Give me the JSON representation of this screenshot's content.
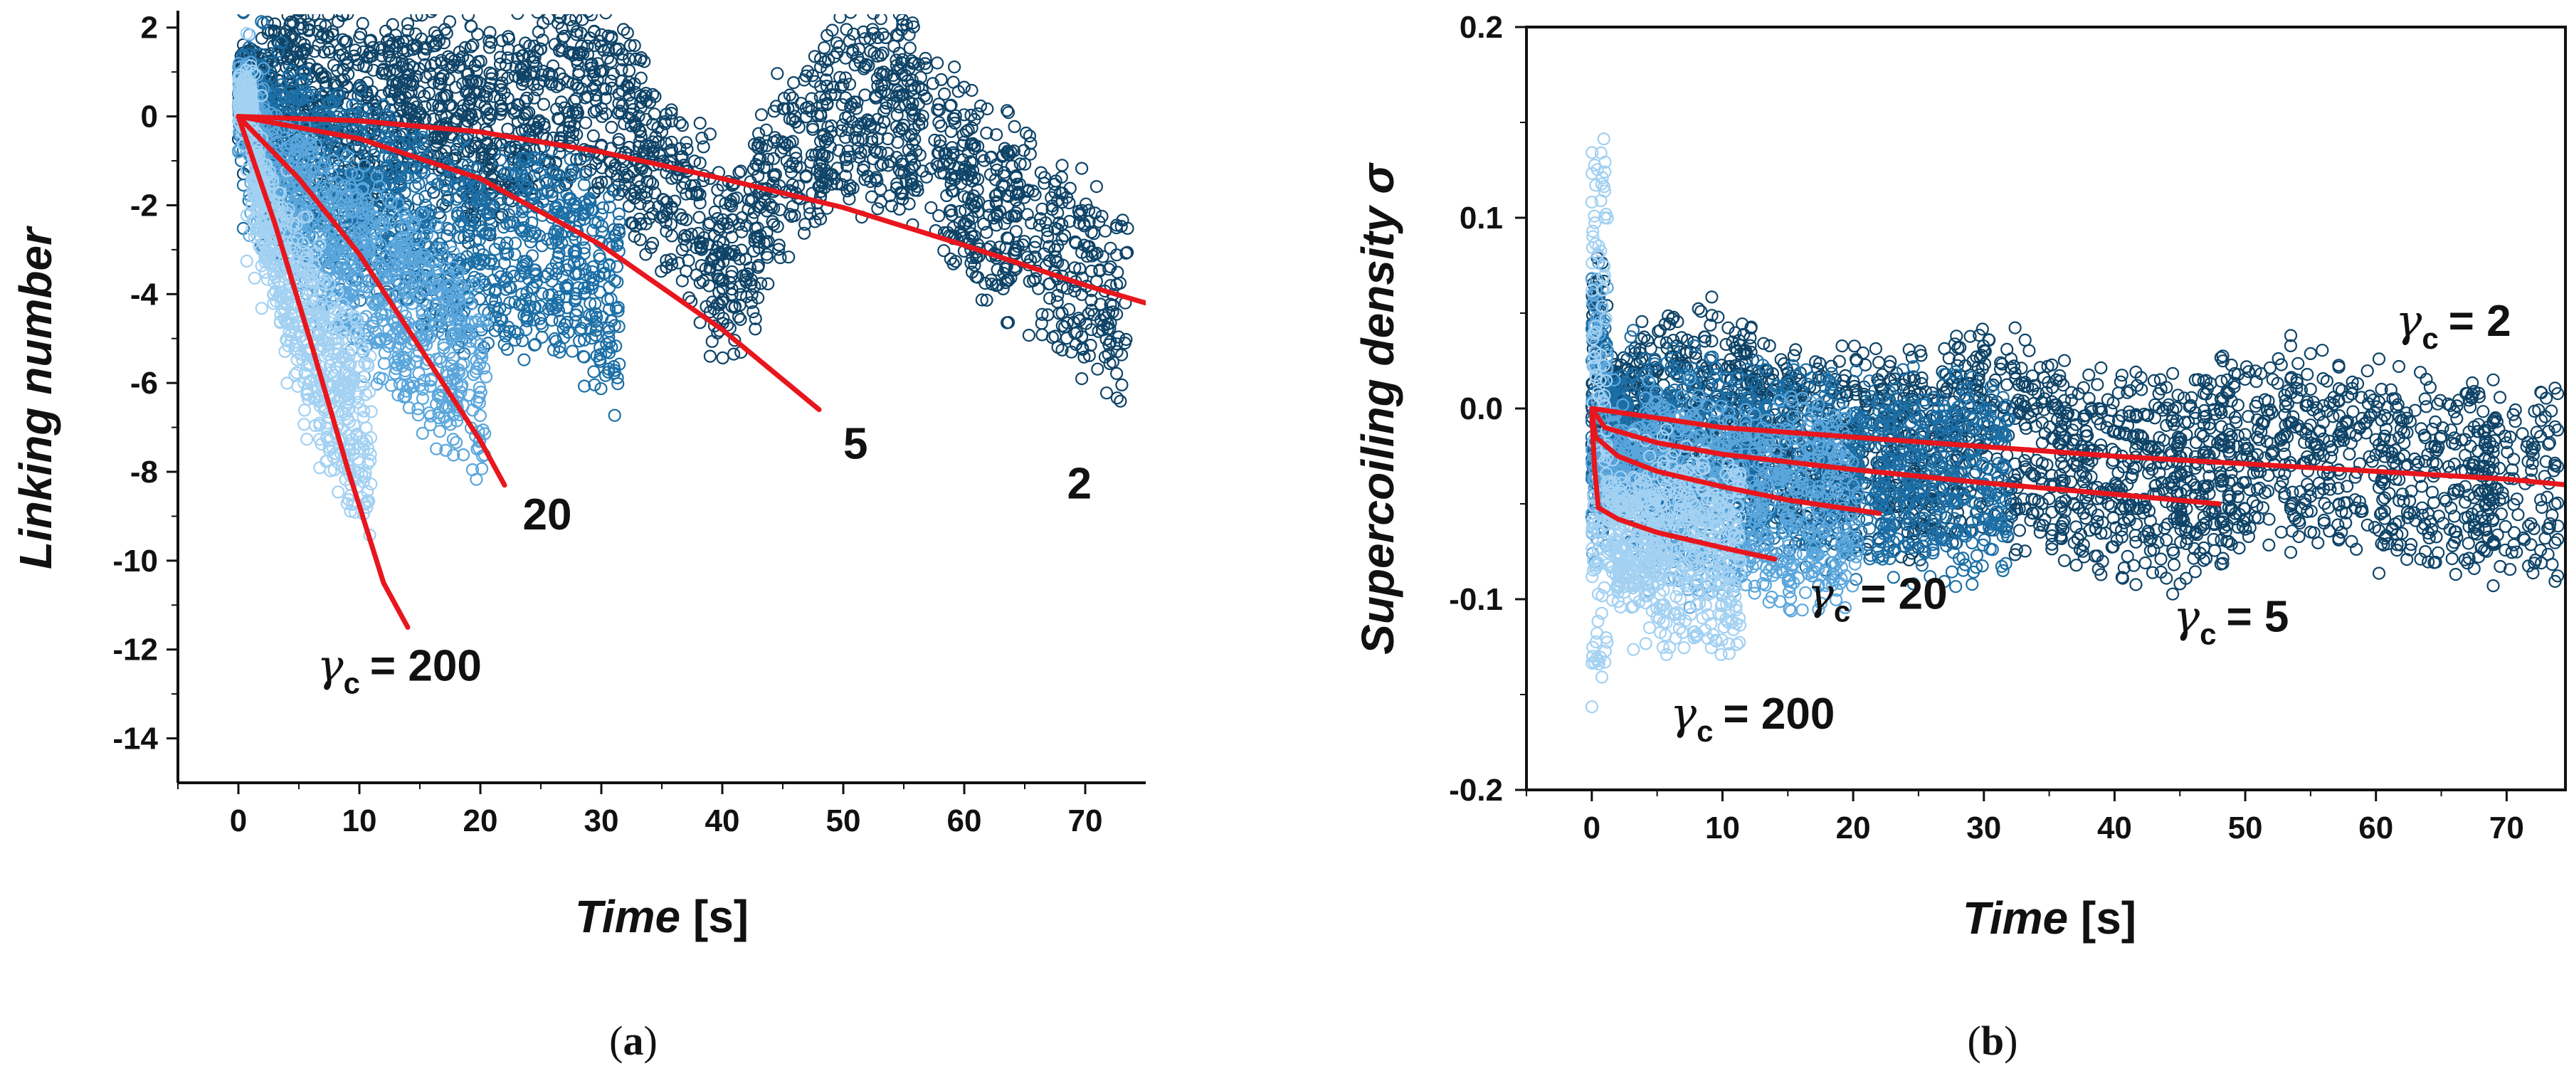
{
  "chart_data": [
    {
      "id": "a",
      "type": "scatter",
      "caption": "a",
      "xlabel": "Time",
      "xunit": "[s]",
      "ylabel": "Linking number",
      "xlim": [
        -5,
        75
      ],
      "ylim": [
        -15,
        2.3
      ],
      "xticks": [
        0,
        10,
        20,
        30,
        40,
        50,
        60,
        70
      ],
      "yticks": [
        2,
        0,
        -2,
        -4,
        -6,
        -8,
        -10,
        -12,
        -14
      ],
      "series": [
        {
          "name": "γc = 2",
          "color": "#0f4468",
          "xmax": 73.5,
          "start_band": [
            -0.2,
            1.2
          ],
          "points": [
            [
              0,
              0.5
            ],
            [
              5,
              0.8
            ],
            [
              10,
              -0.2
            ],
            [
              15,
              0.6
            ],
            [
              20,
              -0.5
            ],
            [
              25,
              0.2
            ],
            [
              30,
              0.6
            ],
            [
              35,
              -1.5
            ],
            [
              38,
              -2.3
            ],
            [
              40,
              -3.5
            ],
            [
              42,
              -3
            ],
            [
              45,
              -1
            ],
            [
              50,
              0.2
            ],
            [
              55,
              0.1
            ],
            [
              58,
              -1
            ],
            [
              62,
              -2
            ],
            [
              65,
              -2.5
            ],
            [
              70,
              -3.6
            ],
            [
              73,
              -4.2
            ]
          ]
        },
        {
          "name": "γc = 5",
          "color": "#1c6fa6",
          "xmax": 31.5,
          "start_band": [
            -0.6,
            1.0
          ],
          "points": [
            [
              0,
              0
            ],
            [
              4,
              -0.8
            ],
            [
              8,
              -1.5
            ],
            [
              12,
              -2
            ],
            [
              16,
              -2.8
            ],
            [
              20,
              -3
            ],
            [
              24,
              -3
            ],
            [
              28,
              -3.3
            ],
            [
              31,
              -4.2
            ]
          ]
        },
        {
          "name": "γc = 20",
          "color": "#5aa6dc",
          "xmax": 20.5,
          "start_band": [
            -0.4,
            0.8
          ],
          "points": [
            [
              0,
              0
            ],
            [
              3,
              -1.4
            ],
            [
              6,
              -2.4
            ],
            [
              9,
              -3.2
            ],
            [
              12,
              -3.8
            ],
            [
              15,
              -4.6
            ],
            [
              18,
              -5.4
            ],
            [
              20,
              -6
            ]
          ]
        },
        {
          "name": "γc = 200",
          "color": "#a3d1f2",
          "xmax": 11,
          "start_band": [
            -0.2,
            0.7
          ],
          "points": [
            [
              0,
              0
            ],
            [
              2,
              -2
            ],
            [
              4,
              -3.6
            ],
            [
              6,
              -5
            ],
            [
              8,
              -6.1
            ],
            [
              10,
              -7
            ],
            [
              11,
              -7.4
            ]
          ]
        }
      ],
      "fits": [
        {
          "name": "γc = 2 fit",
          "points": [
            [
              0,
              0
            ],
            [
              10,
              -0.1
            ],
            [
              20,
              -0.35
            ],
            [
              30,
              -0.8
            ],
            [
              40,
              -1.4
            ],
            [
              50,
              -2.05
            ],
            [
              60,
              -2.9
            ],
            [
              70,
              -3.8
            ],
            [
              75,
              -4.2
            ]
          ]
        },
        {
          "name": "γc = 5 fit",
          "points": [
            [
              0,
              0
            ],
            [
              10,
              -0.5
            ],
            [
              20,
              -1.4
            ],
            [
              30,
              -2.9
            ],
            [
              40,
              -4.8
            ],
            [
              48,
              -6.6
            ]
          ]
        },
        {
          "name": "γc = 20 fit",
          "points": [
            [
              0,
              0
            ],
            [
              5,
              -1.4
            ],
            [
              10,
              -3.1
            ],
            [
              15,
              -5.2
            ],
            [
              20,
              -7.3
            ],
            [
              22,
              -8.3
            ]
          ]
        },
        {
          "name": "γc = 200 fit",
          "points": [
            [
              0,
              0
            ],
            [
              3,
              -2.4
            ],
            [
              6,
              -5.1
            ],
            [
              9,
              -7.9
            ],
            [
              12,
              -10.5
            ],
            [
              14,
              -11.5
            ]
          ]
        }
      ],
      "annotations": [
        {
          "id": "a-label-2",
          "text": "2",
          "x": 68.5,
          "y": -8.6
        },
        {
          "id": "a-label-5",
          "text": "5",
          "x": 50,
          "y": -7.7
        },
        {
          "id": "a-label-20",
          "text": "20",
          "x": 23.5,
          "y": -9.3
        },
        {
          "id": "a-label-200",
          "text": "= 200",
          "x": 6.5,
          "y": -12.7,
          "gamma": true
        }
      ]
    },
    {
      "id": "b",
      "type": "scatter",
      "caption": "b",
      "xlabel": "Time",
      "xunit": "[s]",
      "ylabel": "Supercoiling density σ",
      "xlim": [
        -5,
        74.5
      ],
      "ylim": [
        -0.2,
        0.2
      ],
      "xticks": [
        0,
        10,
        20,
        30,
        40,
        50,
        60,
        70
      ],
      "yticks": [
        0.2,
        0.1,
        0.0,
        -0.1,
        -0.2
      ],
      "ytick_labels": [
        "0.2",
        "0.1",
        "0.0",
        "-0.1",
        "-0.2"
      ],
      "series": [
        {
          "name": "γc = 2",
          "color": "#0f4468",
          "xmax": 74,
          "start_band": [
            -0.05,
            0.08
          ],
          "points": [
            [
              0,
              0.005
            ],
            [
              5,
              -0.005
            ],
            [
              10,
              0.002
            ],
            [
              15,
              -0.02
            ],
            [
              20,
              -0.02
            ],
            [
              25,
              -0.025
            ],
            [
              30,
              -0.01
            ],
            [
              35,
              -0.025
            ],
            [
              40,
              -0.035
            ],
            [
              45,
              -0.04
            ],
            [
              50,
              -0.02
            ],
            [
              55,
              -0.018
            ],
            [
              60,
              -0.03
            ],
            [
              65,
              -0.035
            ],
            [
              70,
              -0.04
            ],
            [
              74,
              -0.04
            ]
          ]
        },
        {
          "name": "γc = 5",
          "color": "#1c6fa6",
          "xmax": 32,
          "start_band": [
            -0.06,
            0.05
          ],
          "points": [
            [
              0,
              -0.01
            ],
            [
              5,
              -0.02
            ],
            [
              10,
              -0.025
            ],
            [
              15,
              -0.03
            ],
            [
              20,
              -0.035
            ],
            [
              25,
              -0.035
            ],
            [
              32,
              -0.04
            ]
          ]
        },
        {
          "name": "γc = 20",
          "color": "#5aa6dc",
          "xmax": 20.5,
          "start_band": [
            -0.08,
            0.08
          ],
          "points": [
            [
              0,
              -0.02
            ],
            [
              4,
              -0.04
            ],
            [
              8,
              -0.045
            ],
            [
              12,
              -0.05
            ],
            [
              16,
              -0.05
            ],
            [
              20,
              -0.055
            ]
          ]
        },
        {
          "name": "γc = 200",
          "color": "#a3d1f2",
          "xmax": 11.5,
          "start_band": [
            -0.15,
            0.14
          ],
          "points": [
            [
              0,
              -0.04
            ],
            [
              2,
              -0.07
            ],
            [
              4,
              -0.07
            ],
            [
              6,
              -0.07
            ],
            [
              8,
              -0.075
            ],
            [
              10,
              -0.08
            ],
            [
              11.5,
              -0.08
            ]
          ]
        }
      ],
      "fits": [
        {
          "name": "γc = 2 fit",
          "points": [
            [
              0,
              0
            ],
            [
              10,
              -0.01
            ],
            [
              20,
              -0.015
            ],
            [
              30,
              -0.02
            ],
            [
              40,
              -0.025
            ],
            [
              50,
              -0.029
            ],
            [
              60,
              -0.033
            ],
            [
              70,
              -0.037
            ],
            [
              74.5,
              -0.04
            ]
          ]
        },
        {
          "name": "γc = 5 fit",
          "points": [
            [
              0,
              0
            ],
            [
              1,
              -0.01
            ],
            [
              5,
              -0.018
            ],
            [
              10,
              -0.024
            ],
            [
              20,
              -0.032
            ],
            [
              30,
              -0.039
            ],
            [
              40,
              -0.045
            ],
            [
              48,
              -0.05
            ]
          ]
        },
        {
          "name": "γc = 20 fit",
          "points": [
            [
              0,
              -0.002
            ],
            [
              0.3,
              -0.015
            ],
            [
              2,
              -0.025
            ],
            [
              5,
              -0.033
            ],
            [
              10,
              -0.041
            ],
            [
              15,
              -0.048
            ],
            [
              22,
              -0.055
            ]
          ]
        },
        {
          "name": "γc = 200 fit",
          "points": [
            [
              0,
              -0.002
            ],
            [
              0.2,
              -0.03
            ],
            [
              0.5,
              -0.052
            ],
            [
              2,
              -0.058
            ],
            [
              5,
              -0.065
            ],
            [
              10,
              -0.073
            ],
            [
              14,
              -0.079
            ]
          ]
        }
      ],
      "annotations": [
        {
          "id": "b-label-2",
          "text": "= 2",
          "x": 61.5,
          "y": 0.038,
          "gamma": true
        },
        {
          "id": "b-label-5",
          "text": "= 5",
          "x": 44.5,
          "y": -0.117,
          "gamma": true
        },
        {
          "id": "b-label-20",
          "text": "= 20",
          "x": 16.5,
          "y": -0.105,
          "gamma": true
        },
        {
          "id": "b-label-200",
          "text": "= 200",
          "x": 6,
          "y": -0.168,
          "gamma": true
        }
      ]
    }
  ]
}
